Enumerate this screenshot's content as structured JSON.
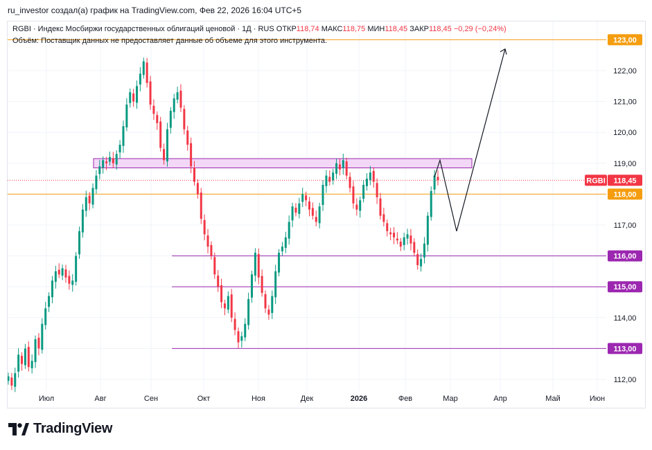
{
  "header": {
    "attribution": "ru_investor создал(а) график на TradingView.com, Фев 22, 2026 16:04 UTC+5"
  },
  "legend": {
    "title": "RGBI · Индекс Мосбиржи государственных облигаций ценовой · 1Д · RUS",
    "open_label": "ОТКР",
    "open_value": "118,74",
    "high_label": "МАКС",
    "high_value": "118,75",
    "low_label": "МИН",
    "low_value": "118,45",
    "close_label": "ЗАКР",
    "close_value": "118,45",
    "change": "−0,29 (−0,24%)",
    "volume_note": "Объём: Поставщик данных не предоставляет данные об объеме для этого инструмента."
  },
  "colors": {
    "up": "#089981",
    "down": "#f23645",
    "orange_line": "#f59d0f",
    "purple_line": "#9c27b0",
    "zone_fill": "#f3d7f7",
    "zone_border": "#9c27b0",
    "price_badge": "#f23645"
  },
  "brand": {
    "name": "TradingView"
  },
  "chart_data": {
    "type": "candlestick",
    "symbol": "RGBI",
    "interval": "1D",
    "ylim": [
      111.7,
      123.3
    ],
    "y_ticks": [
      "112,00",
      "113,00",
      "114,00",
      "115,00",
      "116,00",
      "117,00",
      "118,00",
      "119,00",
      "120,00",
      "121,00",
      "122,00"
    ],
    "x_ticks": [
      "Июл",
      "Авг",
      "Сен",
      "Окт",
      "Ноя",
      "Дек",
      "2026",
      "Фев",
      "Мар",
      "Апр",
      "Май",
      "Июн"
    ],
    "horizontal_lines": [
      {
        "value": 123.0,
        "label": "123,00",
        "color": "#f59d0f"
      },
      {
        "value": 118.0,
        "label": "118,00",
        "color": "#f59d0f"
      },
      {
        "value": 116.0,
        "label": "116,00",
        "color": "#9c27b0"
      },
      {
        "value": 115.0,
        "label": "115,00",
        "color": "#9c27b0"
      },
      {
        "value": 113.0,
        "label": "113,00",
        "color": "#9c27b0"
      }
    ],
    "last_price": {
      "symbol": "RGBI",
      "value": "118,45"
    },
    "resistance_zone": {
      "from": 118.85,
      "to": 119.15
    },
    "forecast_path": [
      118.9,
      116.8,
      122.7
    ],
    "closes": [
      112.1,
      111.8,
      112.2,
      112.8,
      112.5,
      113.0,
      112.4,
      112.6,
      113.3,
      113.0,
      113.8,
      114.3,
      114.7,
      115.2,
      115.5,
      115.4,
      115.6,
      115.3,
      115.1,
      115.2,
      116.0,
      116.8,
      117.5,
      117.9,
      117.7,
      118.2,
      118.6,
      118.9,
      119.1,
      119.0,
      119.2,
      119.0,
      119.3,
      119.6,
      120.2,
      120.9,
      121.3,
      121.0,
      121.5,
      121.9,
      122.3,
      121.6,
      120.9,
      120.6,
      120.3,
      119.5,
      119.1,
      120.1,
      120.7,
      121.1,
      121.3,
      120.8,
      120.1,
      119.6,
      118.9,
      118.4,
      118.0,
      117.2,
      116.7,
      116.3,
      116.0,
      115.4,
      115.0,
      114.5,
      114.3,
      114.7,
      114.0,
      113.6,
      113.2,
      113.4,
      113.8,
      114.6,
      115.4,
      116.1,
      115.3,
      114.8,
      114.3,
      114.1,
      114.7,
      115.5,
      116.1,
      116.3,
      116.6,
      117.1,
      117.6,
      117.4,
      117.7,
      118.0,
      117.8,
      117.5,
      117.3,
      117.1,
      117.6,
      118.3,
      118.6,
      118.4,
      118.7,
      119.0,
      118.8,
      119.1,
      118.6,
      118.2,
      117.7,
      117.5,
      117.8,
      118.3,
      118.5,
      118.7,
      118.4,
      117.9,
      117.3,
      117.1,
      116.8,
      116.7,
      116.6,
      116.5,
      116.3,
      116.6,
      116.7,
      116.4,
      116.1,
      115.7,
      115.9,
      116.4,
      117.3,
      118.1,
      118.6,
      118.45
    ]
  }
}
